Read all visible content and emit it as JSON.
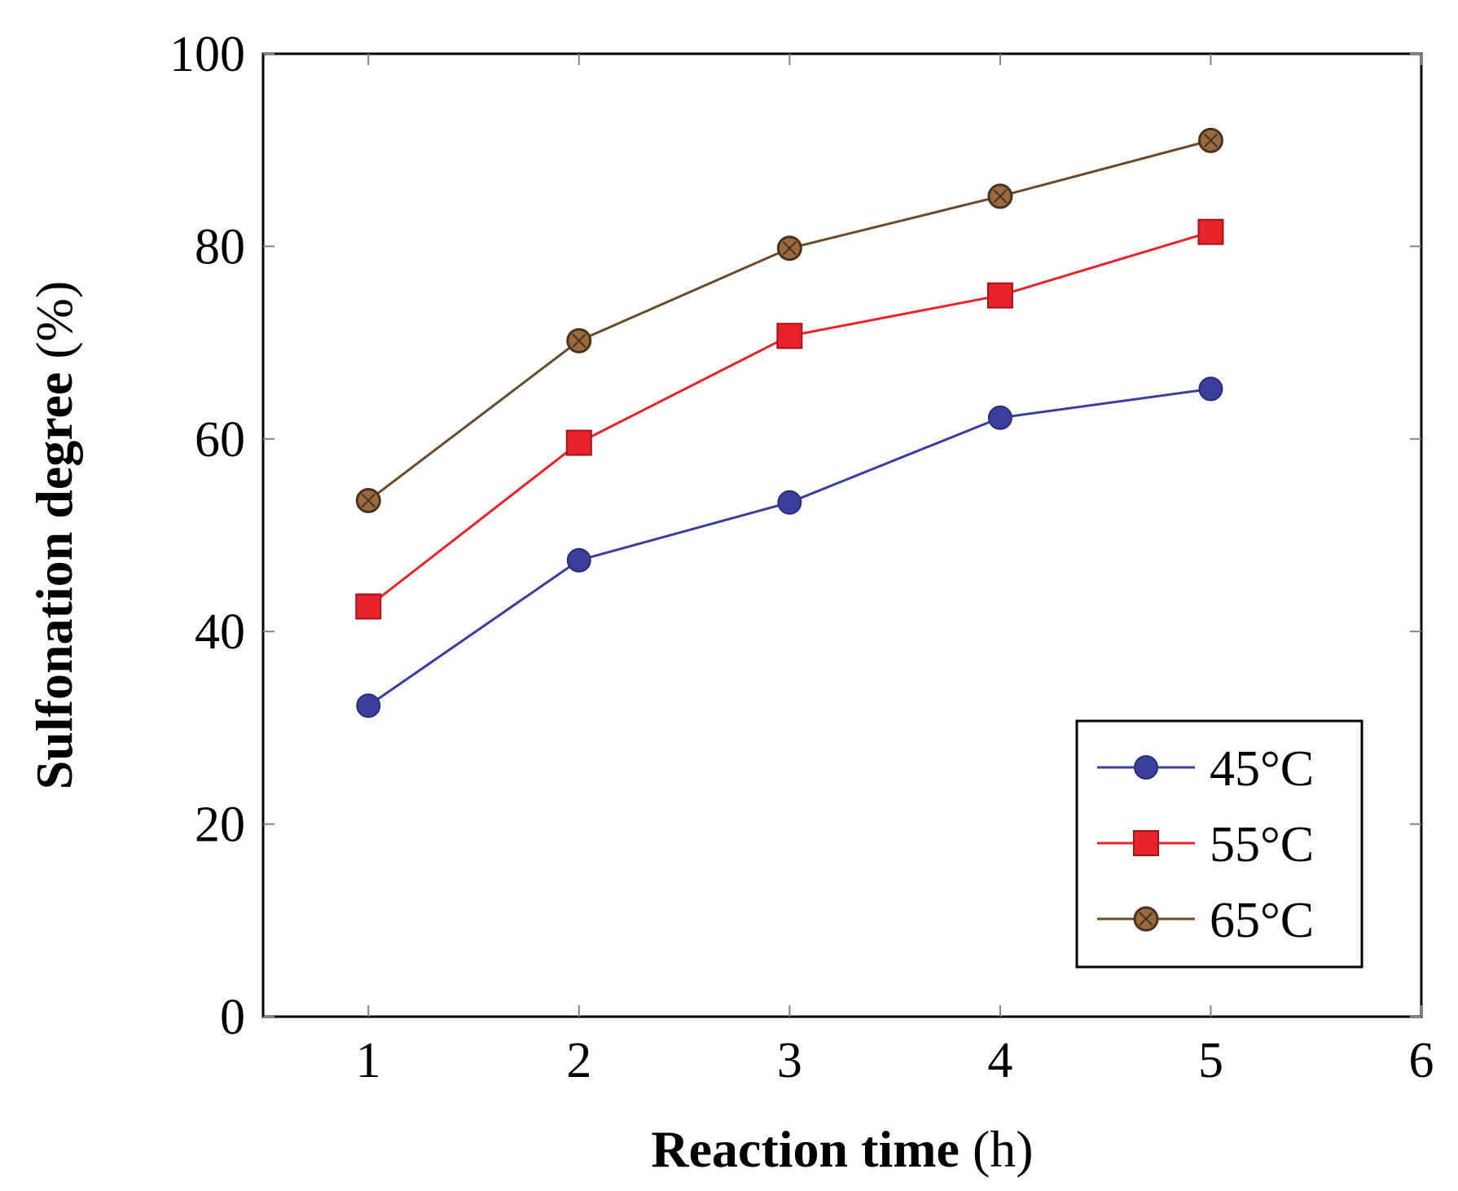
{
  "chart_data": {
    "type": "line",
    "xlabel_bold": "Reaction time",
    "xlabel_unit": "(h)",
    "ylabel_bold": "Sulfonation degree",
    "ylabel_unit": "(%)",
    "xlim": [
      0.5,
      6
    ],
    "ylim": [
      0,
      100
    ],
    "xticks": [
      1,
      2,
      3,
      4,
      5,
      6
    ],
    "yticks": [
      0,
      20,
      40,
      60,
      80,
      100
    ],
    "grid": false,
    "legend_position": "bottom-right",
    "x": [
      1,
      2,
      3,
      4,
      5
    ],
    "series": [
      {
        "name": "45°C",
        "values": [
          32.3,
          47.4,
          53.4,
          62.2,
          65.2
        ],
        "color": "#3b3f9c",
        "marker": "circle"
      },
      {
        "name": "55°C",
        "values": [
          42.6,
          59.6,
          70.7,
          74.9,
          81.5
        ],
        "color": "#e8232a",
        "marker": "square"
      },
      {
        "name": "65°C",
        "values": [
          53.6,
          70.2,
          79.8,
          85.2,
          91.0
        ],
        "color": "#6b4a2b",
        "marker": "circle-hatched"
      }
    ]
  }
}
